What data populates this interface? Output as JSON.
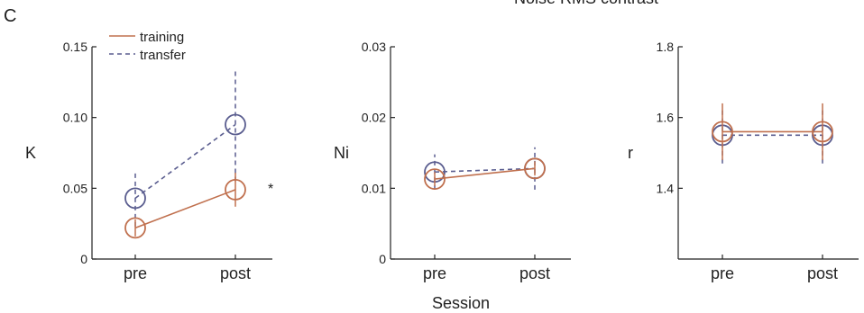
{
  "figure": {
    "panel_letter": "C",
    "header_fragment": "Noise RMS contrast",
    "shared_xlabel": "Session",
    "colors": {
      "training": "#c0704e",
      "transfer": "#5a5d8f",
      "axis": "#222222"
    },
    "legend": [
      {
        "label": "training",
        "style": "solid"
      },
      {
        "label": "transfer",
        "style": "dashed"
      }
    ]
  },
  "chart_data": [
    {
      "type": "line",
      "ylabel": "K",
      "categories": [
        "pre",
        "post"
      ],
      "ylim": [
        0,
        0.15
      ],
      "yticks": [
        "0",
        "0.05",
        "0.10",
        "0.15"
      ],
      "grid": false,
      "legend_position": "top-left",
      "series": [
        {
          "name": "training",
          "values": [
            0.022,
            0.049
          ],
          "errors": [
            0.006,
            0.012
          ]
        },
        {
          "name": "transfer",
          "values": [
            0.043,
            0.095
          ],
          "errors": [
            0.02,
            0.04
          ]
        }
      ],
      "annotation": "*"
    },
    {
      "type": "line",
      "ylabel": "Ni",
      "categories": [
        "pre",
        "post"
      ],
      "ylim": [
        0,
        0.03
      ],
      "yticks": [
        "0",
        "0.01",
        "0.02",
        "0.03"
      ],
      "grid": false,
      "series": [
        {
          "name": "training",
          "values": [
            0.0113,
            0.0128
          ],
          "errors": [
            0.001,
            0.001
          ]
        },
        {
          "name": "transfer",
          "values": [
            0.0123,
            0.0128
          ],
          "errors": [
            0.0025,
            0.003
          ]
        }
      ]
    },
    {
      "type": "line",
      "ylabel": "r",
      "categories": [
        "pre",
        "post"
      ],
      "ylim": [
        1.2,
        1.8
      ],
      "yticks": [
        "1.4",
        "1.6",
        "1.8"
      ],
      "grid": false,
      "series": [
        {
          "name": "training",
          "values": [
            1.56,
            1.56
          ],
          "errors": [
            0.08,
            0.08
          ]
        },
        {
          "name": "transfer",
          "values": [
            1.55,
            1.55
          ],
          "errors": [
            0.08,
            0.08
          ]
        }
      ]
    }
  ]
}
